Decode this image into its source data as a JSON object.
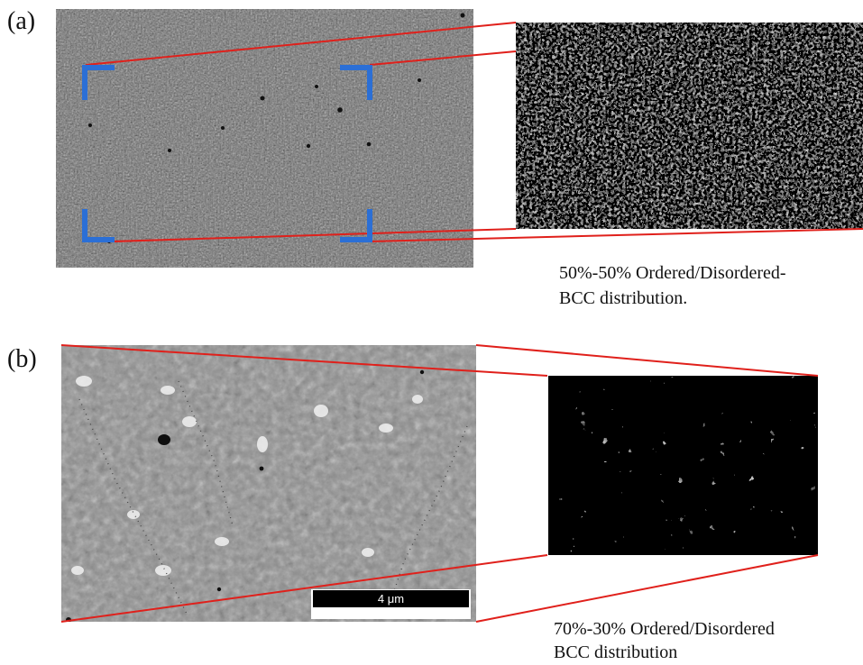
{
  "panel_a": {
    "label": "(a)",
    "caption_line1": "50%-50%  Ordered/Disordered-",
    "caption_line2": "BCC distribution."
  },
  "panel_b": {
    "label": "(b)",
    "caption_line1": "70%-30%    Ordered/Disordered",
    "caption_line2": "BCC distribution",
    "scale_bar_label": "4 μm"
  },
  "colors": {
    "callout_line": "#e0201b",
    "corner_marker": "#2b6fd6",
    "sem_a_bg": "#6f6f6f",
    "sem_b_bg": "#8e8e8e",
    "binary_white": "#ffffff",
    "binary_black": "#000000"
  }
}
